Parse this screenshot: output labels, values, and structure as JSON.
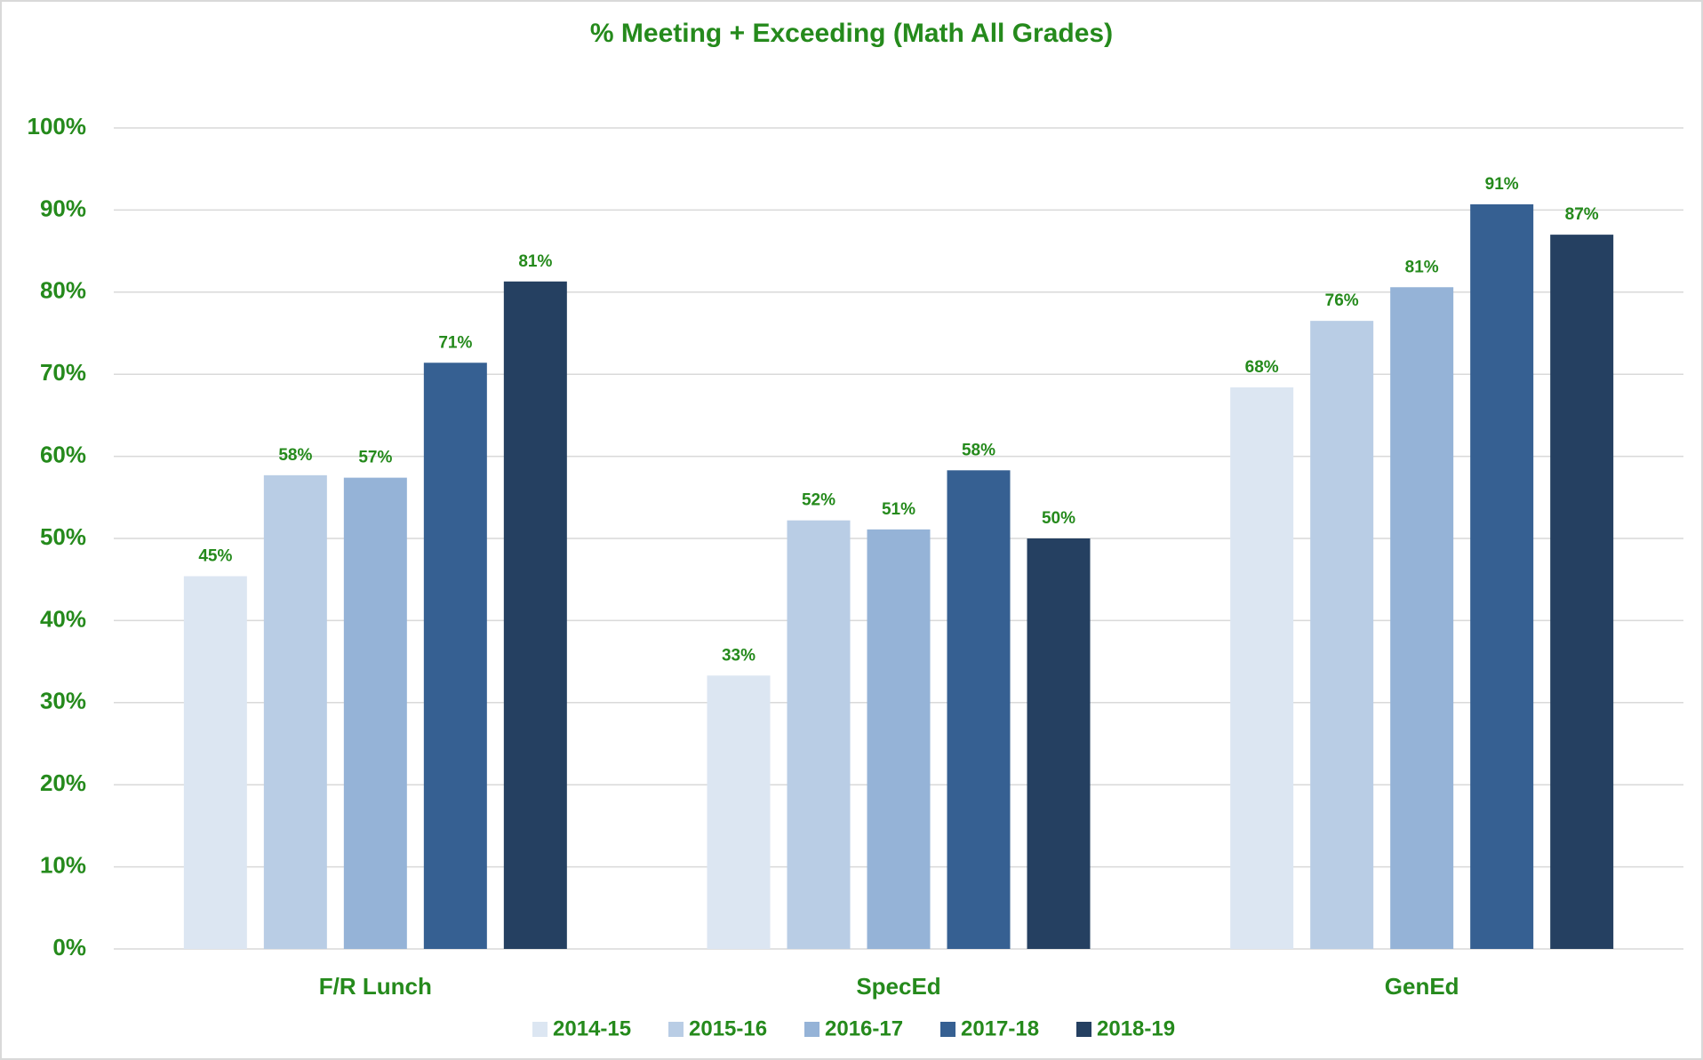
{
  "chart_data": {
    "type": "bar",
    "title": "% Meeting + Exceeding (Math All Grades)",
    "categories": [
      "F/R Lunch",
      "SpecEd",
      "GenEd"
    ],
    "series": [
      {
        "name": "2014-15",
        "color": "#dce6f2",
        "values": [
          45.4,
          33.3,
          68.4
        ],
        "value_labels": [
          "45%",
          "33%",
          "68%"
        ]
      },
      {
        "name": "2015-16",
        "color": "#b9cde5",
        "values": [
          57.7,
          52.2,
          76.5
        ],
        "value_labels": [
          "58%",
          "52%",
          "76%"
        ]
      },
      {
        "name": "2016-17",
        "color": "#95b3d7",
        "values": [
          57.4,
          51.1,
          80.6
        ],
        "value_labels": [
          "57%",
          "51%",
          "81%"
        ]
      },
      {
        "name": "2017-18",
        "color": "#366092",
        "values": [
          71.4,
          58.3,
          90.7
        ],
        "value_labels": [
          "71%",
          "58%",
          "91%"
        ]
      },
      {
        "name": "2018-19",
        "color": "#254061",
        "values": [
          81.3,
          50.0,
          87.0
        ],
        "value_labels": [
          "81%",
          "50%",
          "87%"
        ]
      }
    ],
    "ylim": [
      0,
      100
    ],
    "yticks": [
      {
        "value": 0,
        "label": "0%"
      },
      {
        "value": 10,
        "label": "10%"
      },
      {
        "value": 20,
        "label": "20%"
      },
      {
        "value": 30,
        "label": "30%"
      },
      {
        "value": 40,
        "label": "40%"
      },
      {
        "value": 50,
        "label": "50%"
      },
      {
        "value": 60,
        "label": "60%"
      },
      {
        "value": 70,
        "label": "70%"
      },
      {
        "value": 80,
        "label": "80%"
      },
      {
        "value": 90,
        "label": "90%"
      },
      {
        "value": 100,
        "label": "100%"
      }
    ],
    "grid": true,
    "legend": "bottom"
  }
}
